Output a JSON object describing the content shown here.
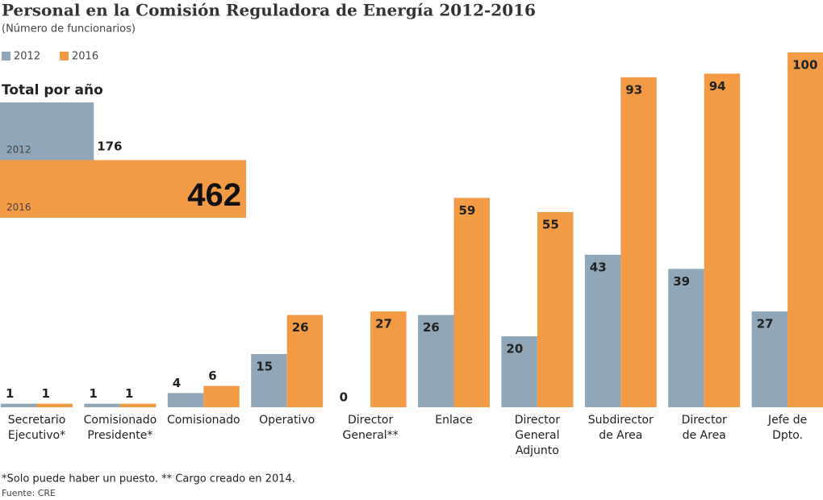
{
  "chart_data": [
    {
      "type": "bar",
      "title": "Personal en la Comisión Reguladora de Energía 2012-2016",
      "subtitle": "(Número de funcionarios)",
      "categories": [
        "Secretario\nEjecutivo*",
        "Comisionado\nPresidente*",
        "Comisionado",
        "Operativo",
        "Director\nGeneral**",
        "Enlace",
        "Director\nGeneral\nAdjunto",
        "Subdirector\nde Area",
        "Director\nde Area",
        "Jefe de\nDpto."
      ],
      "series": [
        {
          "name": "2012",
          "color": "#8fa7b8",
          "values": [
            1,
            1,
            4,
            15,
            0,
            26,
            20,
            43,
            39,
            27
          ]
        },
        {
          "name": "2016",
          "color": "#f39a45",
          "values": [
            1,
            1,
            6,
            26,
            27,
            59,
            55,
            93,
            94,
            100
          ]
        }
      ],
      "notes": [
        "*Solo puede haber un puesto. ** Cargo creado en 2014.",
        "Fuente: CRE"
      ]
    },
    {
      "type": "hbar",
      "title": "Total  por año",
      "categories": [
        "2012",
        "2016"
      ],
      "values": [
        176,
        462
      ],
      "colors": [
        "#8fa7b8",
        "#f39a45"
      ]
    }
  ]
}
